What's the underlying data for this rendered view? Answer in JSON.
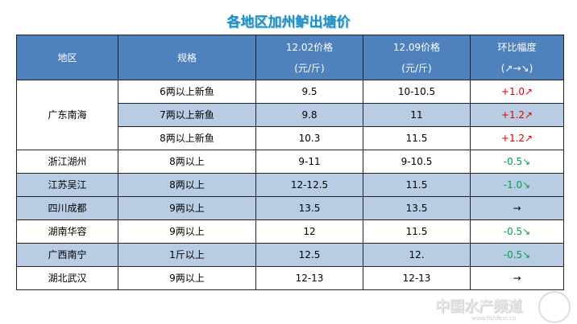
{
  "title": "各地区加州鲈出塘价",
  "headers": [
    "地区",
    "规格",
    "12.02价格",
    "(元/斤)",
    "12.09价格",
    "(元/斤)",
    "环比幅度",
    "(↗→↘)"
  ],
  "rows": [
    {
      "region": "广东南海",
      "spec": "6两以上新鱼",
      "p1": "9.5",
      "p2": "10-10.5",
      "change": "+1.0↗",
      "trend": "up"
    },
    {
      "region": "",
      "spec": "7两以上新鱼",
      "p1": "9.8",
      "p2": "11",
      "change": "+1.2↗",
      "trend": "up"
    },
    {
      "region": "",
      "spec": "8两以上新鱼",
      "p1": "10.3",
      "p2": "11.5",
      "change": "+1.2↗",
      "trend": "up"
    },
    {
      "region": "浙江湖州",
      "spec": "8两以上",
      "p1": "9-11",
      "p2": "9-10.5",
      "change": "-0.5↘",
      "trend": "down"
    },
    {
      "region": "江苏吴江",
      "spec": "8两以上",
      "p1": "12-12.5",
      "p2": "11.5",
      "change": "-1.0↘",
      "trend": "down"
    },
    {
      "region": "四川成都",
      "spec": "9两以上",
      "p1": "13.5",
      "p2": "13.5",
      "change": "→",
      "trend": "flat"
    },
    {
      "region": "湖南华容",
      "spec": "9两以上",
      "p1": "12",
      "p2": "11.5",
      "change": "-0.5↘",
      "trend": "down"
    },
    {
      "region": "广西南宁",
      "spec": "1斤以上",
      "p1": "12.5",
      "p2": "12.",
      "change": "-0.5↘",
      "trend": "down"
    },
    {
      "region": "湖北武汉",
      "spec": "9两以上",
      "p1": "12-13",
      "p2": "12-13",
      "change": "→",
      "trend": "flat"
    }
  ],
  "watermark": "中国水产频道",
  "watermark_url": "www.fishfirst.cn",
  "colors": {
    "header": "#4f81bd",
    "stripe": "#b8cce4",
    "up": "#e00000",
    "down": "#00a050"
  }
}
